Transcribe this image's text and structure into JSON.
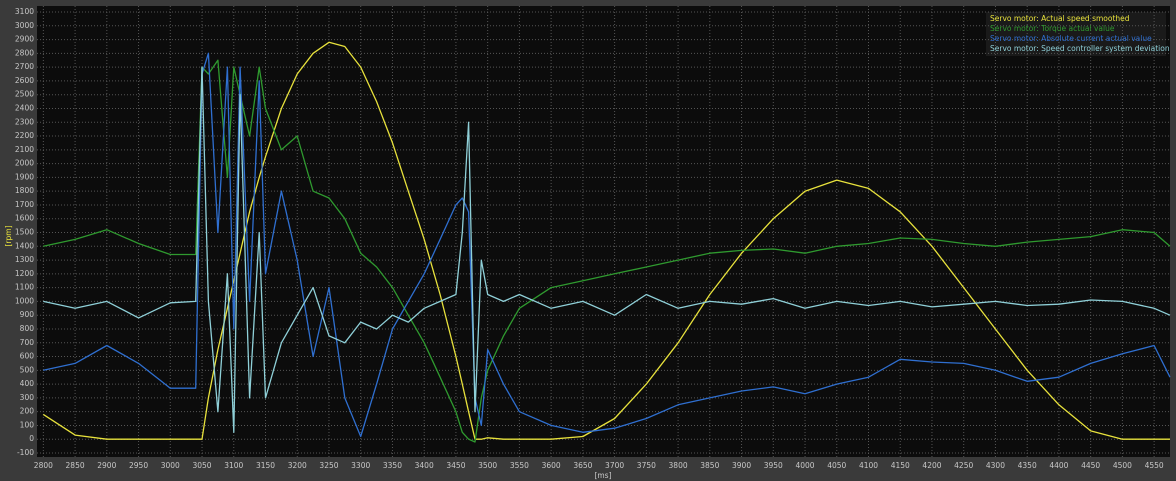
{
  "chart_data": {
    "type": "line",
    "x_label": "[ms]",
    "y_label": "[rpm]",
    "x": [
      2800,
      2850,
      2900,
      2950,
      3000,
      3040,
      3050,
      3060,
      3075,
      3090,
      3100,
      3110,
      3125,
      3140,
      3150,
      3175,
      3200,
      3225,
      3250,
      3275,
      3300,
      3325,
      3350,
      3375,
      3400,
      3425,
      3450,
      3460,
      3470,
      3480,
      3490,
      3500,
      3525,
      3550,
      3600,
      3650,
      3700,
      3750,
      3800,
      3850,
      3900,
      3950,
      4000,
      4050,
      4100,
      4150,
      4200,
      4250,
      4300,
      4350,
      4400,
      4450,
      4500,
      4550,
      4575
    ],
    "series": [
      {
        "name": "Servo motor: Actual speed smoothed",
        "color": "#e8e23c",
        "values": [
          180,
          30,
          0,
          0,
          0,
          0,
          0,
          300,
          650,
          950,
          1150,
          1350,
          1650,
          1900,
          2050,
          2400,
          2650,
          2800,
          2880,
          2850,
          2700,
          2450,
          2150,
          1800,
          1450,
          1050,
          600,
          400,
          200,
          0,
          0,
          10,
          0,
          0,
          0,
          20,
          150,
          400,
          700,
          1050,
          1350,
          1600,
          1800,
          1880,
          1820,
          1650,
          1400,
          1100,
          800,
          500,
          250,
          60,
          0,
          0,
          0
        ]
      },
      {
        "name": "Servo motor: Torque actual value",
        "color": "#2f9a2f",
        "values": [
          1400,
          1450,
          1520,
          1420,
          1340,
          1340,
          2700,
          2650,
          2750,
          1900,
          2700,
          2500,
          2200,
          2700,
          2400,
          2100,
          2200,
          1800,
          1750,
          1600,
          1350,
          1250,
          1100,
          900,
          700,
          450,
          200,
          50,
          0,
          -20,
          300,
          500,
          750,
          950,
          1100,
          1150,
          1200,
          1250,
          1300,
          1350,
          1370,
          1380,
          1350,
          1400,
          1420,
          1460,
          1450,
          1420,
          1400,
          1430,
          1450,
          1470,
          1520,
          1500,
          1400
        ]
      },
      {
        "name": "Servo motor: Absolute current actual value",
        "color": "#2f6fd0",
        "values": [
          500,
          550,
          680,
          550,
          370,
          370,
          2650,
          2800,
          1500,
          2700,
          800,
          2700,
          1000,
          2600,
          1200,
          1800,
          1300,
          600,
          1100,
          300,
          20,
          400,
          800,
          1000,
          1200,
          1450,
          1700,
          1750,
          1650,
          300,
          100,
          650,
          400,
          200,
          100,
          50,
          80,
          150,
          250,
          300,
          350,
          380,
          330,
          400,
          450,
          580,
          560,
          550,
          500,
          420,
          450,
          550,
          620,
          680,
          450
        ]
      },
      {
        "name": "Servo motor: Speed controller system deviation",
        "color": "#8fd0d8",
        "values": [
          1000,
          950,
          1000,
          880,
          990,
          1000,
          2700,
          1000,
          200,
          1200,
          50,
          2500,
          300,
          1500,
          300,
          700,
          900,
          1100,
          750,
          700,
          850,
          800,
          900,
          850,
          950,
          1000,
          1050,
          1500,
          2300,
          200,
          1300,
          1050,
          1000,
          1050,
          950,
          1000,
          900,
          1050,
          950,
          1000,
          980,
          1020,
          950,
          1000,
          970,
          1000,
          960,
          980,
          1000,
          970,
          980,
          1010,
          1000,
          950,
          900
        ]
      }
    ],
    "xlim": [
      2790,
      4575
    ],
    "ylim": [
      -100,
      3100
    ],
    "xticks": [
      2800,
      2850,
      2900,
      2950,
      3000,
      3050,
      3100,
      3150,
      3200,
      3250,
      3300,
      3350,
      3400,
      3450,
      3500,
      3550,
      3600,
      3650,
      3700,
      3750,
      3800,
      3850,
      3900,
      3950,
      4000,
      4050,
      4100,
      4150,
      4200,
      4250,
      4300,
      4350,
      4400,
      4450,
      4500,
      4550
    ],
    "yticks": [
      -100,
      0,
      100,
      200,
      300,
      400,
      500,
      600,
      700,
      800,
      900,
      1000,
      1100,
      1200,
      1300,
      1400,
      1500,
      1600,
      1700,
      1800,
      1900,
      2000,
      2100,
      2200,
      2300,
      2400,
      2500,
      2600,
      2700,
      2800,
      2900,
      3000,
      3100
    ],
    "grid": true
  }
}
